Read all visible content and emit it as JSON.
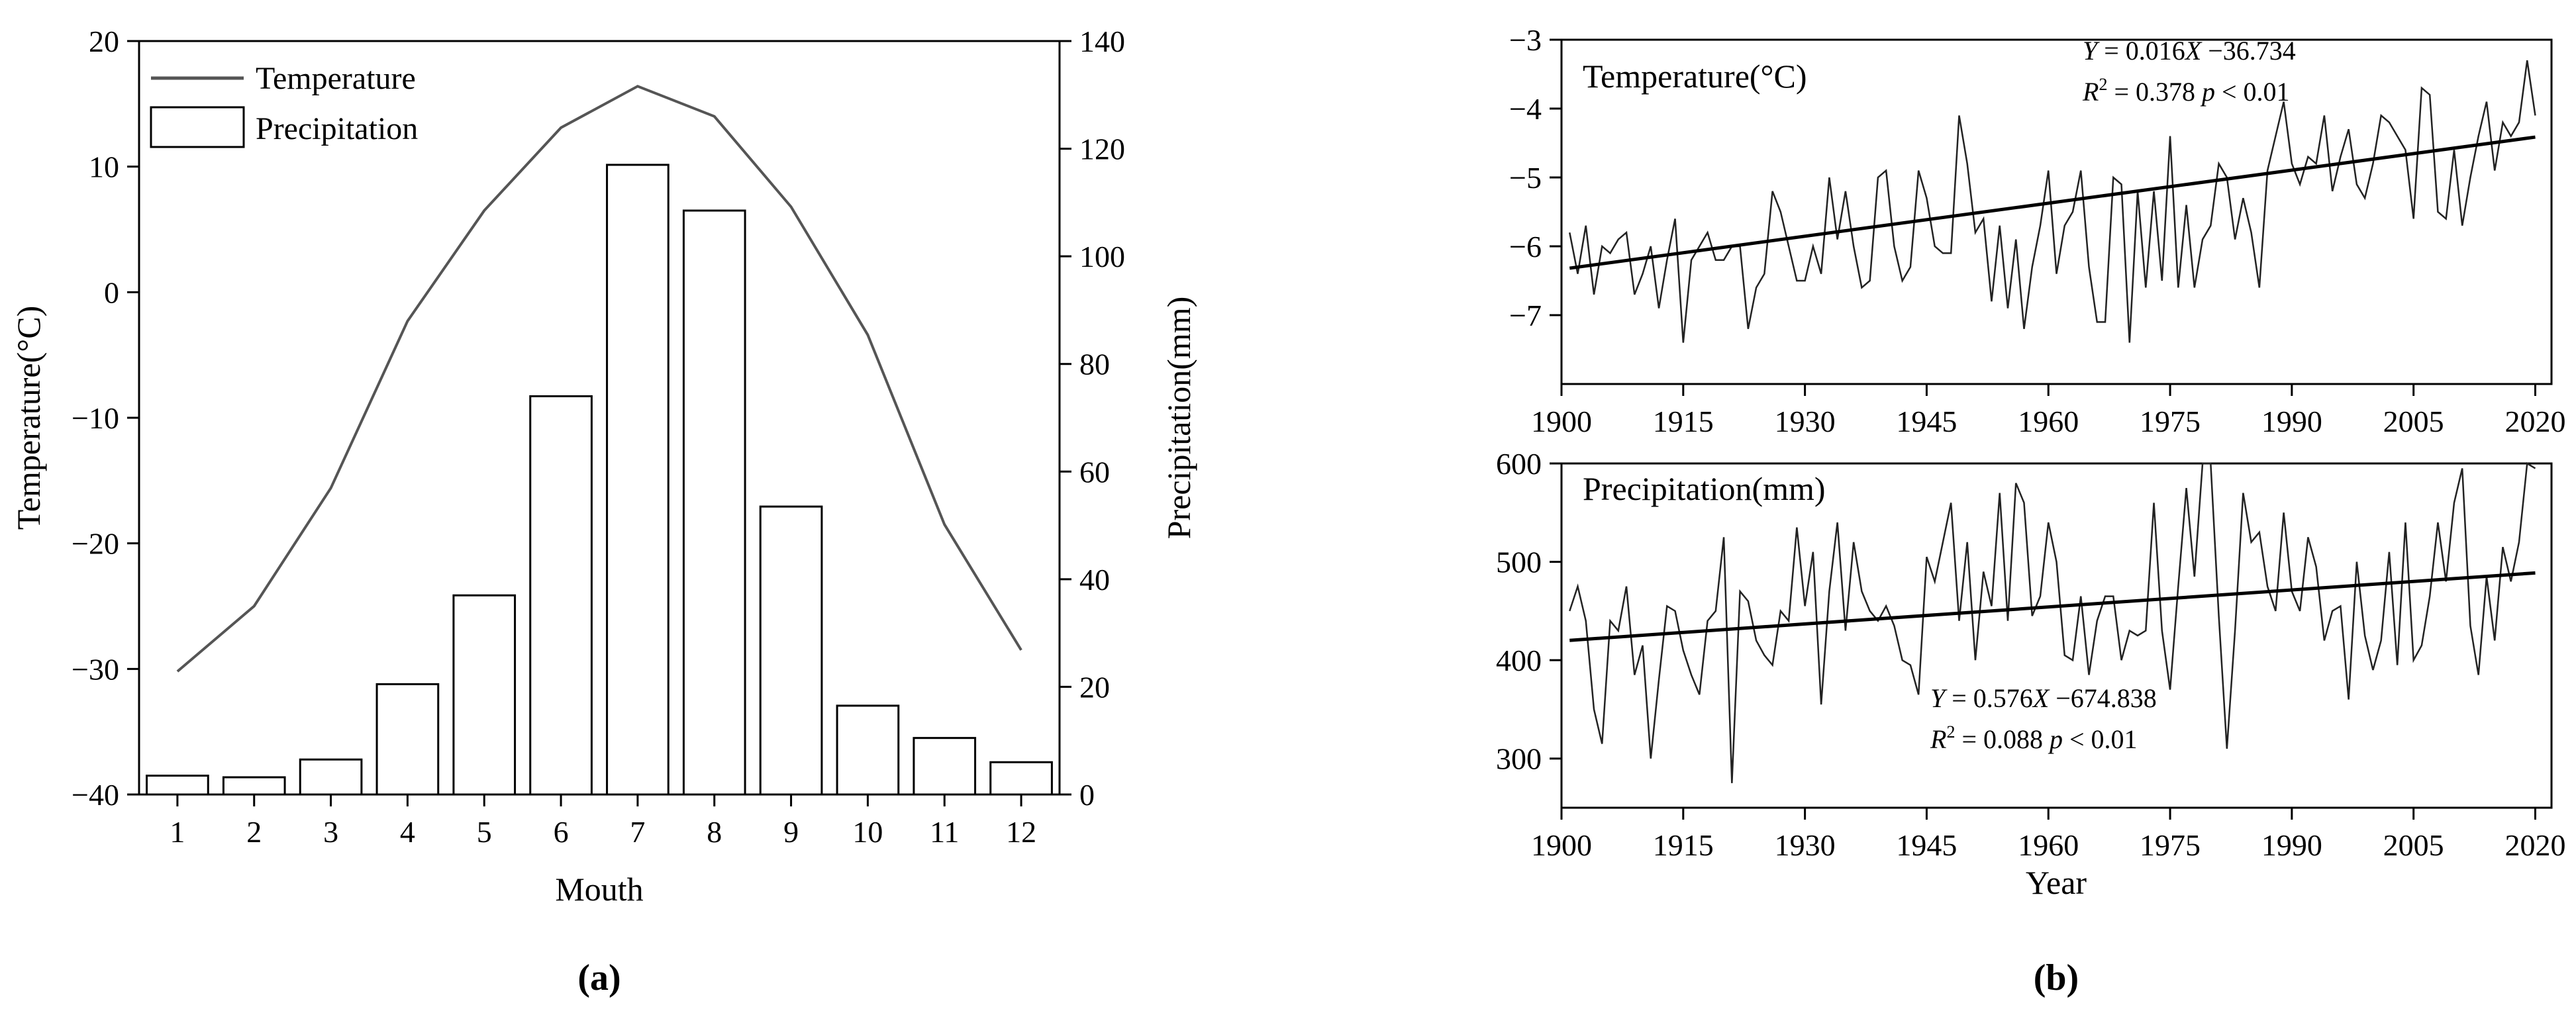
{
  "panel_labels": {
    "a": "(a)",
    "b": "(b)"
  },
  "chart_data": [
    {
      "id": "a",
      "type": "bar+line",
      "xlabel": "Mouth",
      "ylabel_left": "Temperature(°C)",
      "ylabel_right": "Precipitation(mm)",
      "categories": [
        "1",
        "2",
        "3",
        "4",
        "5",
        "6",
        "7",
        "8",
        "9",
        "10",
        "11",
        "12"
      ],
      "ylim_left": [
        -40,
        20
      ],
      "yticks_left": [
        "20",
        "10",
        "0",
        "−10",
        "−20",
        "−30",
        "−40"
      ],
      "ylim_right": [
        0,
        140
      ],
      "yticks_right": [
        "140",
        "120",
        "100",
        "80",
        "60",
        "40",
        "20",
        "0"
      ],
      "legend": [
        "Temperature",
        "Precipitation"
      ],
      "series": [
        {
          "name": "Temperature",
          "type": "line",
          "axis": "left",
          "values": [
            -30.2,
            -25.0,
            -15.6,
            -2.3,
            6.5,
            13.1,
            16.4,
            14.0,
            6.8,
            -3.4,
            -18.5,
            -28.5
          ]
        },
        {
          "name": "Precipitation",
          "type": "bar",
          "axis": "right",
          "values": [
            3.5,
            3.2,
            6.5,
            20.5,
            37,
            74,
            117,
            108.5,
            53.5,
            16.5,
            10.5,
            6
          ]
        }
      ]
    },
    {
      "id": "b-top",
      "type": "line",
      "title": "Temperature(°C)",
      "xlabel": "",
      "xlim": [
        1900,
        2022
      ],
      "xticks": [
        "1900",
        "1915",
        "1930",
        "1945",
        "1960",
        "1975",
        "1990",
        "2005",
        "2020"
      ],
      "ylim": [
        -8,
        -3
      ],
      "yticks": [
        "−3",
        "−4",
        "−5",
        "−6",
        "−7"
      ],
      "equation": "= 0.016",
      "equation_rest": "−36.734",
      "r2_text": "= 0.378",
      "p_text": "< 0.01",
      "trend": {
        "slope": 0.016,
        "intercept": -36.734
      },
      "x_start": 1901,
      "values": [
        -5.8,
        -6.4,
        -5.7,
        -6.7,
        -6.0,
        -6.1,
        -5.9,
        -5.8,
        -6.7,
        -6.4,
        -6.0,
        -6.9,
        -6.2,
        -5.6,
        -7.4,
        -6.2,
        -6.0,
        -5.8,
        -6.2,
        -6.2,
        -6.0,
        -6.0,
        -7.2,
        -6.6,
        -6.4,
        -5.2,
        -5.5,
        -6.0,
        -6.5,
        -6.5,
        -6.0,
        -6.4,
        -5.0,
        -5.9,
        -5.2,
        -6.0,
        -6.6,
        -6.5,
        -5.0,
        -4.9,
        -6.0,
        -6.5,
        -6.3,
        -4.9,
        -5.3,
        -6.0,
        -6.1,
        -6.1,
        -4.1,
        -4.8,
        -5.8,
        -5.6,
        -6.8,
        -5.7,
        -6.9,
        -5.9,
        -7.2,
        -6.3,
        -5.7,
        -4.9,
        -6.4,
        -5.7,
        -5.5,
        -4.9,
        -6.3,
        -7.1,
        -7.1,
        -5.0,
        -5.1,
        -7.4,
        -5.2,
        -6.6,
        -5.2,
        -6.5,
        -4.4,
        -6.6,
        -5.4,
        -6.6,
        -5.9,
        -5.7,
        -4.8,
        -5.0,
        -5.9,
        -5.3,
        -5.8,
        -6.6,
        -4.9,
        -4.4,
        -3.9,
        -4.8,
        -5.1,
        -4.7,
        -4.8,
        -4.1,
        -5.2,
        -4.7,
        -4.3,
        -5.1,
        -5.3,
        -4.8,
        -4.1,
        -4.2,
        -4.4,
        -4.6,
        -5.6,
        -3.7,
        -3.8,
        -5.5,
        -5.6,
        -4.6,
        -5.7,
        -5.0,
        -4.4,
        -3.9,
        -4.9,
        -4.2,
        -4.4,
        -4.2,
        -3.3,
        -4.1
      ]
    },
    {
      "id": "b-bottom",
      "type": "line",
      "title": "Precipitation(mm)",
      "xlabel": "Year",
      "xlim": [
        1900,
        2022
      ],
      "xticks": [
        "1900",
        "1915",
        "1930",
        "1945",
        "1960",
        "1975",
        "1990",
        "2005",
        "2020"
      ],
      "ylim": [
        250,
        600
      ],
      "yticks": [
        "600",
        "500",
        "400",
        "300"
      ],
      "equation": "= 0.576",
      "equation_rest": "−674.838",
      "r2_text": "= 0.088",
      "p_text": "< 0.01",
      "trend": {
        "slope": 0.576,
        "intercept": -674.838
      },
      "x_start": 1901,
      "values": [
        450,
        475,
        440,
        350,
        315,
        440,
        430,
        475,
        385,
        415,
        300,
        380,
        455,
        450,
        410,
        385,
        365,
        440,
        450,
        525,
        275,
        470,
        460,
        420,
        405,
        395,
        450,
        440,
        535,
        455,
        510,
        355,
        470,
        540,
        430,
        520,
        470,
        450,
        440,
        455,
        435,
        400,
        395,
        365,
        505,
        480,
        520,
        560,
        440,
        520,
        400,
        490,
        455,
        570,
        440,
        580,
        560,
        445,
        465,
        540,
        500,
        405,
        400,
        465,
        385,
        440,
        465,
        465,
        400,
        430,
        425,
        430,
        560,
        430,
        370,
        475,
        575,
        485,
        600,
        600,
        445,
        310,
        430,
        570,
        520,
        530,
        475,
        450,
        550,
        470,
        450,
        525,
        495,
        420,
        450,
        455,
        360,
        500,
        425,
        390,
        420,
        510,
        395,
        540,
        400,
        415,
        465,
        540,
        480,
        560,
        595,
        435,
        385,
        485,
        420,
        515,
        480,
        520,
        600,
        595
      ]
    }
  ]
}
